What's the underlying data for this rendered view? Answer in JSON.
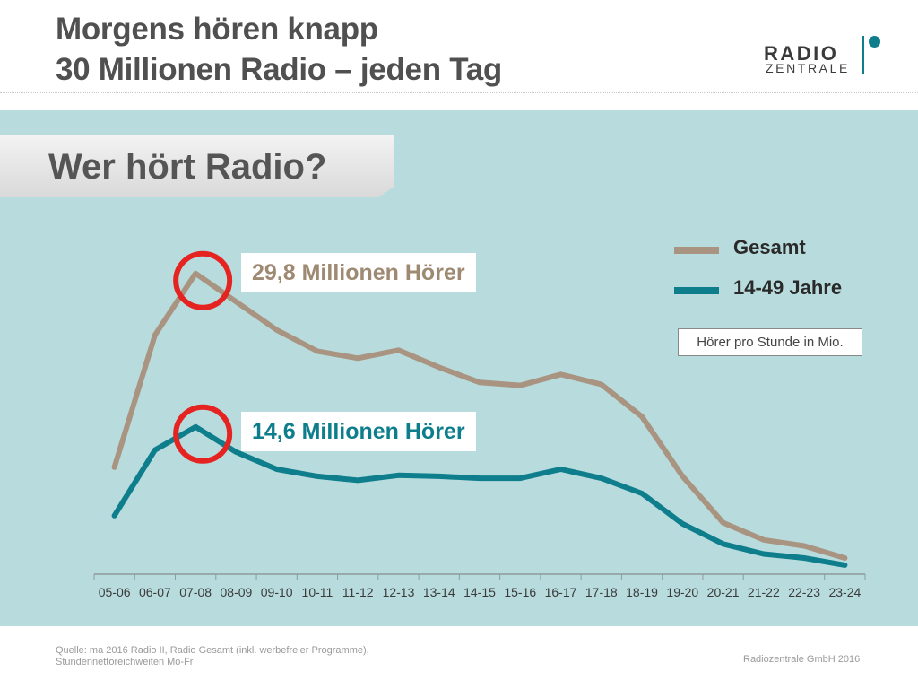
{
  "header": {
    "title_line1": "Morgens hören knapp",
    "title_line2": "30 Millionen Radio – jeden Tag",
    "logo_line1": "RADIO",
    "logo_line2": "ZENTRALE"
  },
  "banner": {
    "text": "Wer hört Radio?"
  },
  "legend": {
    "unit": "Hörer pro Stunde in Mio."
  },
  "callouts": {
    "total": "29,8 Millionen Hörer",
    "young": "14,6 Millionen Hörer"
  },
  "footer": {
    "source_line1": "Quelle: ma 2016 Radio II, Radio Gesamt (inkl. werbefreier Programme),",
    "source_line2": "Stundennettoreichweiten Mo-Fr",
    "company": "Radiozentrale GmbH 2016"
  },
  "colors": {
    "total": "#a89480",
    "young": "#0e7d8c",
    "highlight": "#e52320",
    "panel": "#b8dcdd"
  },
  "chart_data": {
    "type": "line",
    "title": "",
    "xlabel": "",
    "ylabel": "",
    "categories": [
      "05-06",
      "06-07",
      "07-08",
      "08-09",
      "09-10",
      "10-11",
      "11-12",
      "12-13",
      "13-14",
      "14-15",
      "15-16",
      "16-17",
      "17-18",
      "18-19",
      "19-20",
      "20-21",
      "21-22",
      "22-23",
      "23-24"
    ],
    "ylim": [
      0,
      32
    ],
    "grid": false,
    "legend_position": "top-right",
    "series": [
      {
        "name": "Gesamt",
        "color": "#a89480",
        "values": [
          10.6,
          23.7,
          29.8,
          27.0,
          24.2,
          22.1,
          21.4,
          22.2,
          20.5,
          19.0,
          18.7,
          19.8,
          18.8,
          15.6,
          9.7,
          5.1,
          3.4,
          2.8,
          1.6
        ]
      },
      {
        "name": "14-49 Jahre",
        "color": "#0e7d8c",
        "values": [
          5.8,
          12.3,
          14.6,
          12.1,
          10.4,
          9.7,
          9.3,
          9.8,
          9.7,
          9.5,
          9.5,
          10.4,
          9.5,
          8.0,
          5.0,
          3.0,
          2.0,
          1.6,
          0.9
        ]
      }
    ],
    "highlights": [
      {
        "series": "Gesamt",
        "category": "07-08",
        "value": 29.8
      },
      {
        "series": "14-49 Jahre",
        "category": "07-08",
        "value": 14.6
      }
    ]
  }
}
